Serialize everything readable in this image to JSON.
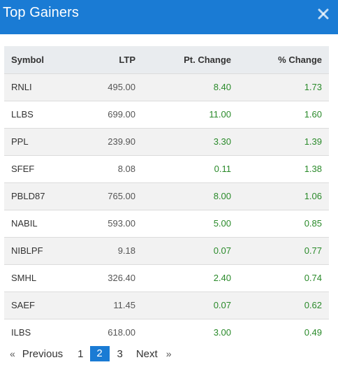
{
  "header": {
    "title": "Top Gainers",
    "close_icon": "close-icon"
  },
  "table": {
    "columns": [
      "Symbol",
      "LTP",
      "Pt. Change",
      "% Change"
    ],
    "rows": [
      [
        "RNLI",
        "495.00",
        "8.40",
        "1.73"
      ],
      [
        "LLBS",
        "699.00",
        "11.00",
        "1.60"
      ],
      [
        "PPL",
        "239.90",
        "3.30",
        "1.39"
      ],
      [
        "SFEF",
        "8.08",
        "0.11",
        "1.38"
      ],
      [
        "PBLD87",
        "765.00",
        "8.00",
        "1.06"
      ],
      [
        "NABIL",
        "593.00",
        "5.00",
        "0.85"
      ],
      [
        "NIBLPF",
        "9.18",
        "0.07",
        "0.77"
      ],
      [
        "SMHL",
        "326.40",
        "2.40",
        "0.74"
      ],
      [
        "SAEF",
        "11.45",
        "0.07",
        "0.62"
      ],
      [
        "ILBS",
        "618.00",
        "3.00",
        "0.49"
      ]
    ]
  },
  "pagination": {
    "prev_arrow": "«",
    "prev_label": "Previous",
    "pages": [
      "1",
      "2",
      "3"
    ],
    "current_page": "2",
    "next_label": "Next",
    "next_arrow": "»"
  },
  "colors": {
    "header_bg": "#1a7bd4",
    "positive": "#2a8a2a",
    "active_page": "#1a7bd4"
  }
}
